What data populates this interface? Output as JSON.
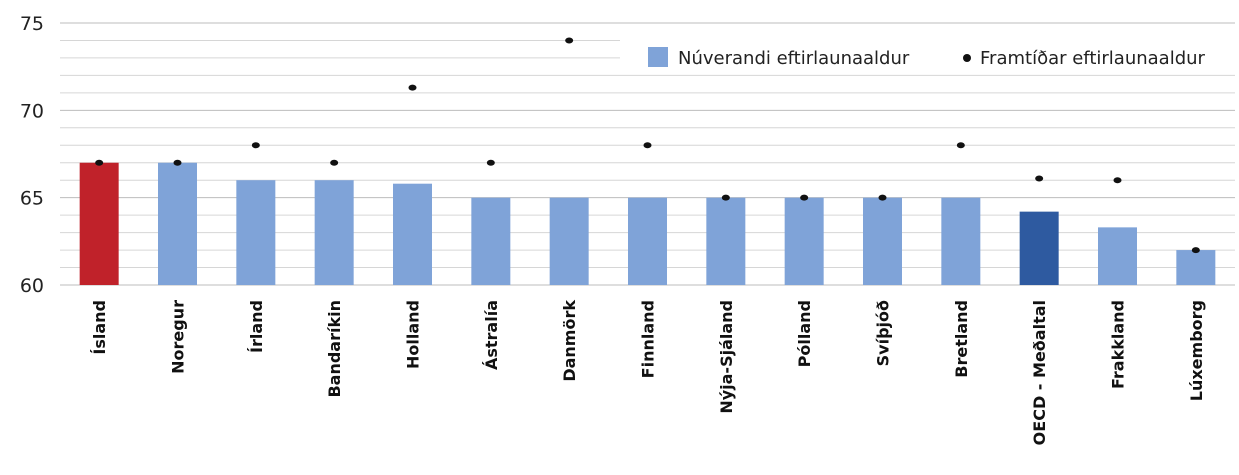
{
  "chart_data": {
    "type": "bar",
    "categories": [
      "Ísland",
      "Noregur",
      "Írland",
      "Bandaríkin",
      "Holland",
      "Ástralía",
      "Danmörk",
      "Finnland",
      "Nýja-Sjáland",
      "Pólland",
      "Svíþjóð",
      "Bretland",
      "OECD - Meðaltal",
      "Frakkland",
      "Lúxemborg"
    ],
    "series": [
      {
        "name": "Núverandi eftirlaunaaldur",
        "kind": "bar",
        "values": [
          67,
          67,
          66,
          66,
          65.8,
          65,
          65,
          65,
          65,
          65,
          65,
          65,
          64.2,
          63.3,
          62
        ],
        "color": "#7fa3d8",
        "highlight_colors": {
          "Ísland": "#c0222a",
          "OECD - Meðaltal": "#2e5aa0"
        }
      },
      {
        "name": "Framtíðar eftirlaunaaldur",
        "kind": "dot",
        "values": [
          67,
          67,
          68,
          67,
          71.3,
          67,
          74,
          68,
          65,
          65,
          65,
          68,
          66.1,
          66,
          62
        ],
        "color": "#111111"
      }
    ],
    "ylim": [
      60,
      75
    ],
    "yticks": [
      60,
      65,
      70,
      75
    ],
    "grid": true,
    "legend_position": "top-right"
  }
}
